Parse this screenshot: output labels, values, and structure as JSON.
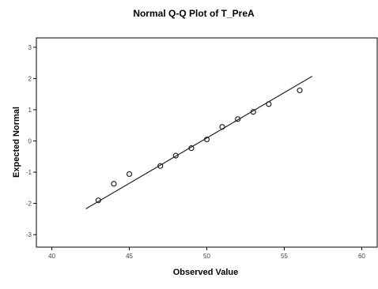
{
  "chart_data": {
    "type": "scatter",
    "title": "Normal Q-Q Plot of T_PreA",
    "xlabel": "Observed Value",
    "ylabel": "Expected Normal",
    "xlim": [
      39,
      61
    ],
    "ylim": [
      -3.4,
      3.3
    ],
    "x_ticks": [
      40,
      45,
      50,
      55,
      60
    ],
    "y_ticks": [
      -3,
      -2,
      -1,
      0,
      1,
      2,
      3
    ],
    "grid": false,
    "legend": "none",
    "marker": "circle",
    "series": [
      {
        "points": [
          {
            "x": 43,
            "y": -1.9
          },
          {
            "x": 44,
            "y": -1.37
          },
          {
            "x": 45,
            "y": -1.06
          },
          {
            "x": 47,
            "y": -0.8
          },
          {
            "x": 48,
            "y": -0.47
          },
          {
            "x": 49,
            "y": -0.23
          },
          {
            "x": 50,
            "y": 0.05
          },
          {
            "x": 51,
            "y": 0.45
          },
          {
            "x": 52,
            "y": 0.7
          },
          {
            "x": 53,
            "y": 0.93
          },
          {
            "x": 54,
            "y": 1.18
          },
          {
            "x": 56,
            "y": 1.62
          }
        ]
      }
    ],
    "reference_line": {
      "x": [
        42.2,
        56.8
      ],
      "y": [
        -2.17,
        2.07
      ]
    },
    "colors": {
      "marker_stroke": "#222222",
      "line": "#222222",
      "axis": "#000000"
    }
  }
}
